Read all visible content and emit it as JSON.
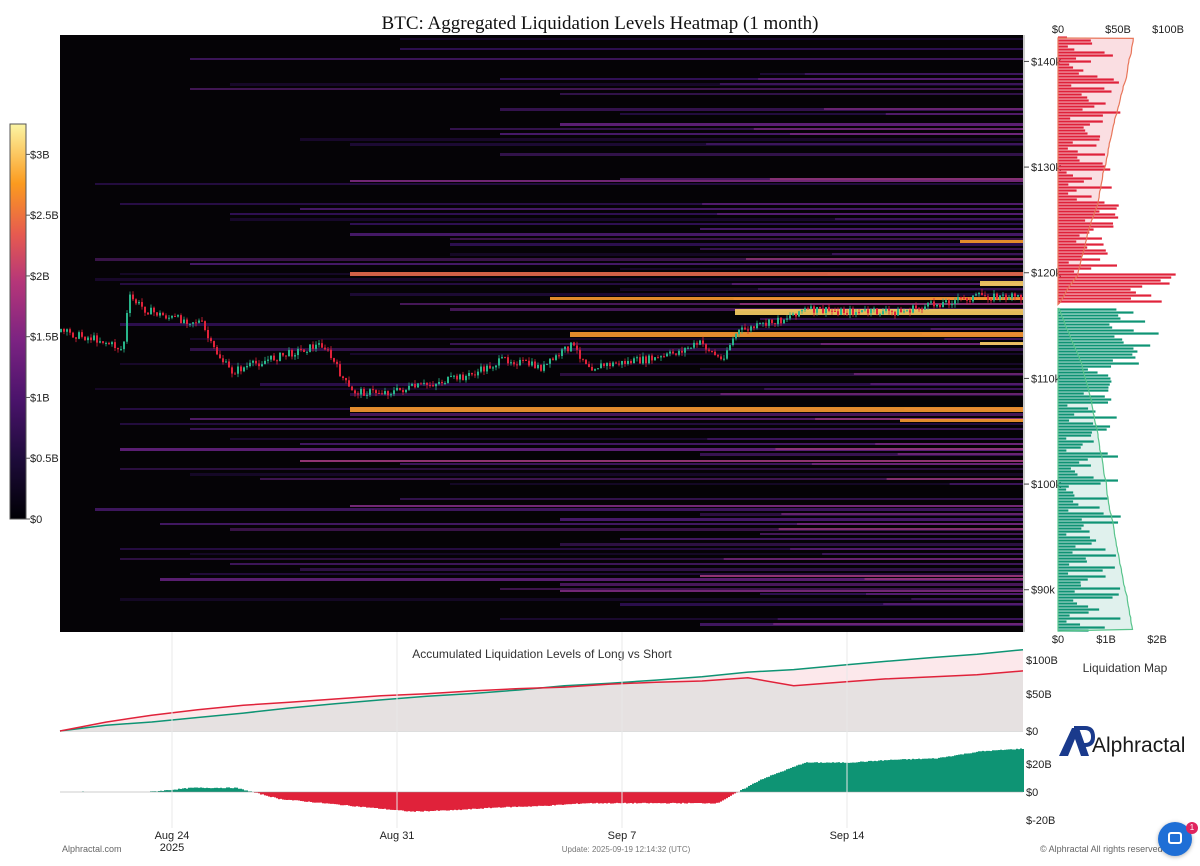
{
  "title": "BTC: Aggregated Liquidation Levels Heatmap (1 month)",
  "colorbar": {
    "labels": [
      "$3B",
      "$2.5B",
      "$2B",
      "$1.5B",
      "$1B",
      "$0.5B",
      "$0"
    ],
    "min": 0,
    "max": 3.25
  },
  "price_axis": {
    "labels": [
      "$140k",
      "$130k",
      "$120k",
      "$110k",
      "$100k",
      "$90k"
    ],
    "min": 86000,
    "max": 142500
  },
  "date_axis": {
    "labels": [
      "Aug 24",
      "Aug 31",
      "Sep 7",
      "Sep 14"
    ],
    "year_label": "2025"
  },
  "liq_map": {
    "top_labels": [
      "$0",
      "$50B",
      "$100B"
    ],
    "bottom_labels": [
      "$0",
      "$1B",
      "$2B"
    ],
    "caption": "Liquidation Map",
    "current_price": 117000
  },
  "accumulated": {
    "title": "Accumulated Liquidation Levels of Long vs Short",
    "axis_labels": [
      "$100B",
      "$50B",
      "$0"
    ],
    "long_series": [
      0,
      8,
      12,
      18,
      26,
      33,
      38,
      43,
      48,
      53,
      58,
      63,
      67,
      72,
      77,
      82,
      87,
      92,
      97,
      103,
      109,
      115
    ],
    "short_series": [
      0,
      13,
      22,
      30,
      36,
      41,
      46,
      50,
      53,
      56,
      59,
      62,
      65,
      68,
      71,
      75,
      63,
      69,
      73,
      76,
      80,
      85
    ]
  },
  "delta": {
    "axis_labels": [
      "$20B",
      "$0",
      "$-20B"
    ],
    "values": [
      0,
      0,
      0,
      3,
      3,
      -5,
      -8,
      -11,
      -14,
      -13,
      -11,
      -10,
      -8,
      -8,
      -8,
      -8,
      9,
      21,
      21,
      23,
      24,
      29,
      31
    ]
  },
  "footer": {
    "left": "Alphractal.com",
    "center": "Update: 2025-09-19 12:14:32 (UTC)",
    "right": "© Alphractal All rights reserved"
  },
  "brand": {
    "name": "Alphractal"
  },
  "chat": {
    "badge_count": "1"
  },
  "colors": {
    "long_green": "#0e9474",
    "short_red": "#e0223a",
    "heatmap_bg": "#050306",
    "heat_high": "#fbf5a4"
  }
}
